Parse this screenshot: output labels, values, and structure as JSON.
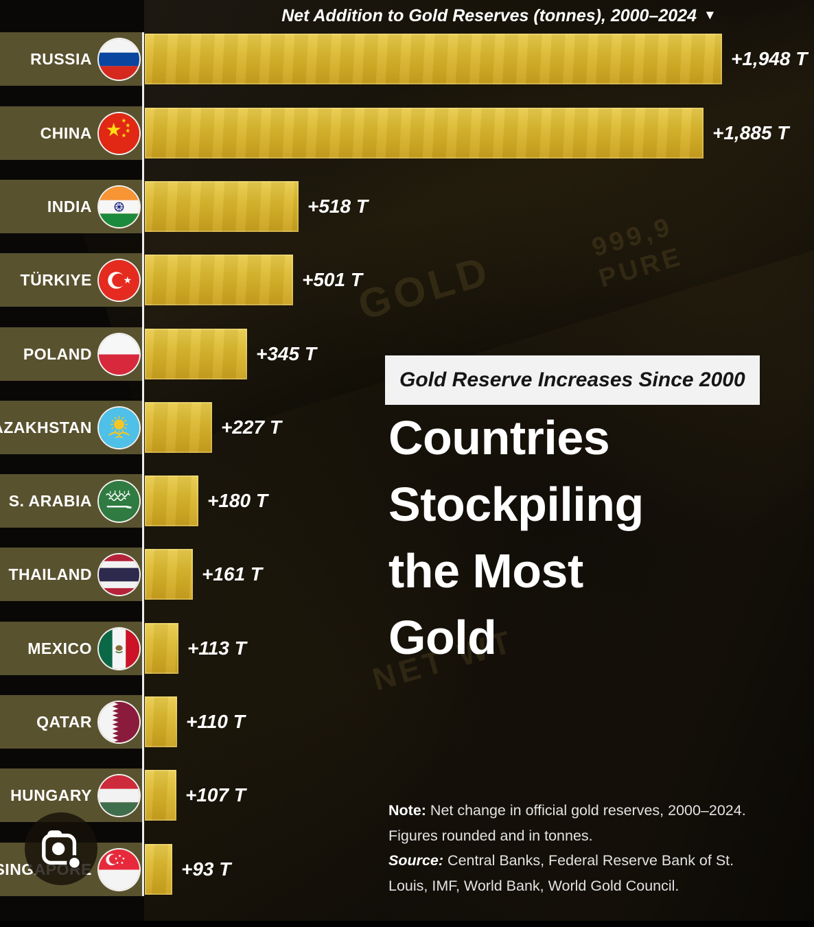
{
  "header": {
    "axis_title": "Net Addition to Gold Reserves (tonnes), 2000–2024",
    "sort_arrow": "▼"
  },
  "panel": {
    "kicker": "Gold Reserve Increases Since 2000",
    "title_lines": [
      "Countries",
      "Stockpiling",
      "the Most",
      "Gold"
    ]
  },
  "notes": {
    "note_label": "Note:",
    "note_line1": "Net change in official gold reserves, 2000–2024.",
    "note_line2": "Figures rounded and in tonnes.",
    "source_label": "Source:",
    "source_line1": "Central Banks, Federal Reserve Bank of St.",
    "source_line2": "Louis, IMF, World Bank, World Gold Council."
  },
  "background": {
    "embossed_gold": "GOLD",
    "embossed_purity_line1": "999,9",
    "embossed_purity_line2": "PURE",
    "embossed_net_wt": "NET WT"
  },
  "colors": {
    "gold_bar": "#d9b52c",
    "row_band": "#59522f",
    "divider": "#ffffff",
    "kicker_bg": "#f2f2f2",
    "kicker_text": "#161616",
    "heading_text": "#ffffff",
    "note_text": "#e3e3e3",
    "canvas_bg": "#0a0807"
  },
  "chart_data": {
    "type": "bar",
    "orientation": "horizontal",
    "title": "Net Addition to Gold Reserves (tonnes), 2000–2024",
    "unit": "tonnes",
    "x_range": [
      0,
      1948
    ],
    "max_tonnes": 1948,
    "rows": [
      {
        "country": "RUSSIA",
        "flag": "russia",
        "tonnes": 1948,
        "label": "+1,948 T"
      },
      {
        "country": "CHINA",
        "flag": "china",
        "tonnes": 1885,
        "label": "+1,885 T"
      },
      {
        "country": "INDIA",
        "flag": "india",
        "tonnes": 518,
        "label": "+518 T"
      },
      {
        "country": "TÜRKIYE",
        "flag": "turkiye",
        "tonnes": 501,
        "label": "+501 T"
      },
      {
        "country": "POLAND",
        "flag": "poland",
        "tonnes": 345,
        "label": "+345 T"
      },
      {
        "country": "KAZAKHSTAN",
        "flag": "kazakhstan",
        "tonnes": 227,
        "label": "+227 T"
      },
      {
        "country": "S. ARABIA",
        "flag": "saudi_arabia",
        "tonnes": 180,
        "label": "+180 T"
      },
      {
        "country": "THAILAND",
        "flag": "thailand",
        "tonnes": 161,
        "label": "+161 T"
      },
      {
        "country": "MEXICO",
        "flag": "mexico",
        "tonnes": 113,
        "label": "+113 T"
      },
      {
        "country": "QATAR",
        "flag": "qatar",
        "tonnes": 110,
        "label": "+110 T"
      },
      {
        "country": "HUNGARY",
        "flag": "hungary",
        "tonnes": 107,
        "label": "+107 T"
      },
      {
        "country": "SINGAPORE",
        "flag": "singapore",
        "tonnes": 93,
        "label": "+93 T"
      }
    ]
  },
  "overlay": {
    "camera_button": "google-lens-camera"
  }
}
